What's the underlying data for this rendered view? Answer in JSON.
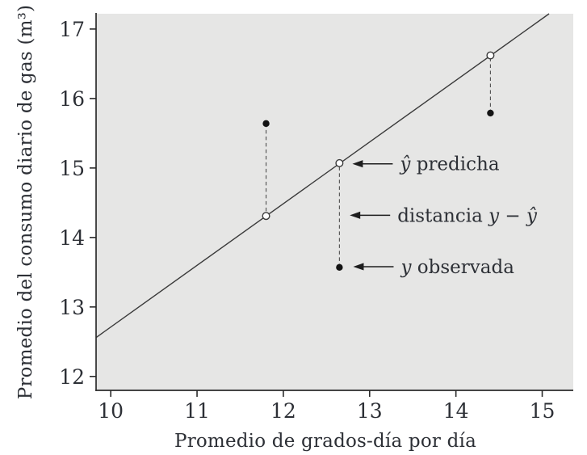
{
  "figure": {
    "description_labels": {
      "predicted_label": "ŷ predicha",
      "distance_label": "distancia y − ŷ",
      "observed_label": "y observada"
    }
  },
  "chart_data": {
    "type": "scatter",
    "title": "",
    "xlabel": "Promedio de grados-día por día",
    "ylabel": "Promedio del consumo diario de gas (m³)",
    "xlim": [
      9.83,
      15.36
    ],
    "ylim": [
      11.8,
      17.22
    ],
    "x_ticks": [
      10,
      11,
      12,
      13,
      14,
      15
    ],
    "y_ticks": [
      12,
      13,
      14,
      15,
      16,
      17
    ],
    "grid": false,
    "legend": "none",
    "colors": {
      "plot_bg": "#e6e6e5",
      "axis": "#2b2b2b",
      "line": "#3a3a3a",
      "dash": "#4f4f4f",
      "point_fill": "#141414",
      "point_open_fill": "#ffffff",
      "text": "#2d3036",
      "arrow": "#1e1e1e"
    },
    "series": [
      {
        "name": "y observada",
        "marker": "filled-circle",
        "points": [
          [
            11.8,
            15.64
          ],
          [
            12.65,
            13.57
          ],
          [
            14.4,
            15.79
          ]
        ]
      },
      {
        "name": "ŷ predicha",
        "marker": "open-circle",
        "points": [
          [
            11.8,
            14.31
          ],
          [
            12.65,
            15.07
          ],
          [
            14.4,
            16.62
          ]
        ]
      }
    ],
    "regression_line": {
      "slope": 0.885,
      "intercept": 3.87,
      "x1": 9.83,
      "y1": 12.56,
      "x2": 15.08,
      "y2": 17.22
    },
    "residuals": [
      {
        "x": 11.8,
        "y_observed": 15.64,
        "y_predicted": 14.31
      },
      {
        "x": 12.65,
        "y_observed": 13.57,
        "y_predicted": 15.07
      },
      {
        "x": 14.4,
        "y_observed": 15.79,
        "y_predicted": 16.62
      }
    ],
    "annotations": [
      {
        "name": "predicted-annotation",
        "text": "ŷ predicha",
        "segments": [
          {
            "t": "ŷ",
            "italic": true
          },
          {
            "t": " predicha",
            "italic": false
          }
        ],
        "tip": {
          "x": 12.8,
          "y": 15.06
        }
      },
      {
        "name": "distance-annotation",
        "text": "distancia y − ŷ",
        "segments": [
          {
            "t": "distancia ",
            "italic": false
          },
          {
            "t": "y",
            "italic": true
          },
          {
            "t": " − ",
            "italic": false
          },
          {
            "t": "ŷ",
            "italic": true
          }
        ],
        "tip": {
          "x": 12.77,
          "y": 14.32
        }
      },
      {
        "name": "observed-annotation",
        "text": "y observada",
        "segments": [
          {
            "t": "y",
            "italic": true
          },
          {
            "t": " observada",
            "italic": false
          }
        ],
        "tip": {
          "x": 12.81,
          "y": 13.58
        }
      }
    ]
  }
}
